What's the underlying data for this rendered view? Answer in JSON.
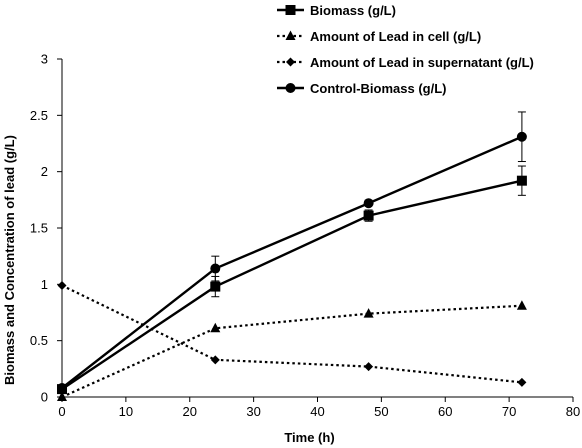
{
  "chart_data": {
    "type": "line",
    "xlabel": "Time (h)",
    "ylabel": "Biomass and Concentration of lead (g/L)",
    "xlim": [
      0,
      80
    ],
    "ylim": [
      0,
      3
    ],
    "x_ticks": [
      0,
      10,
      20,
      30,
      40,
      50,
      60,
      70,
      80
    ],
    "y_ticks": [
      0,
      0.5,
      1,
      1.5,
      2,
      2.5,
      3
    ],
    "grid": false,
    "legend_position": "top-right",
    "x": [
      0,
      24,
      48,
      72
    ],
    "series": [
      {
        "name": "Biomass (g/L)",
        "line_style": "solid",
        "marker": "square",
        "values": [
          0.07,
          0.98,
          1.61,
          1.92
        ],
        "errors": [
          0,
          0.09,
          0.05,
          0.13
        ]
      },
      {
        "name": "Amount of Lead in cell (g/L)",
        "line_style": "dotted",
        "marker": "triangle",
        "values": [
          0.0,
          0.61,
          0.74,
          0.81
        ],
        "errors": [
          0,
          0,
          0,
          0
        ]
      },
      {
        "name": "Amount of Lead in supernatant (g/L)",
        "line_style": "dotted",
        "marker": "diamond",
        "values": [
          0.99,
          0.33,
          0.27,
          0.13
        ],
        "errors": [
          0,
          0,
          0,
          0
        ]
      },
      {
        "name": "Control-Biomass (g/L)",
        "line_style": "solid",
        "marker": "circle",
        "values": [
          0.08,
          1.14,
          1.72,
          2.31
        ],
        "errors": [
          0,
          0.11,
          0,
          0.22
        ]
      }
    ]
  }
}
